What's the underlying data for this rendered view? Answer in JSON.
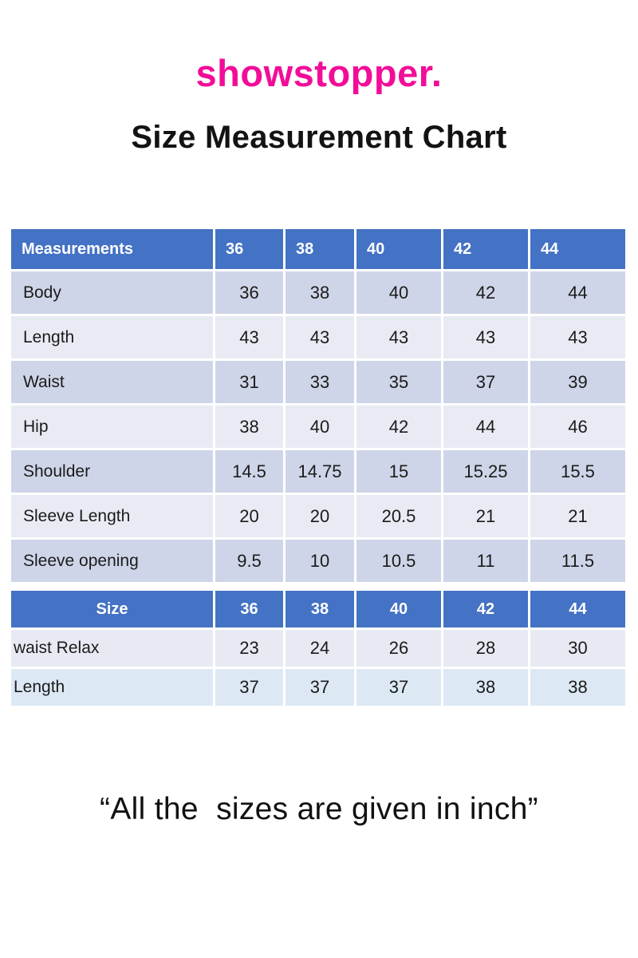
{
  "page": {
    "logo": "showstopper.",
    "title": "Size Measurement Chart",
    "footnote": "“All the  sizes are given in inch”"
  },
  "colors": {
    "brand_pink": "#F20D99",
    "header_blue": "#4472C4",
    "band_dark": "#CFD5E8",
    "band_light": "#E9EBF4",
    "size_table_row1": "#E8EAF3",
    "size_table_row2": "#DCE9F5"
  },
  "tables": [
    {
      "name": "measurements-table",
      "header": [
        "Measurements",
        "36",
        "38",
        "40",
        "42",
        "44"
      ],
      "rows": [
        {
          "label": "Body",
          "values": [
            "36",
            "38",
            "40",
            "42",
            "44"
          ]
        },
        {
          "label": "Length",
          "values": [
            "43",
            "43",
            "43",
            "43",
            "43"
          ]
        },
        {
          "label": "Waist",
          "values": [
            "31",
            "33",
            "35",
            "37",
            "39"
          ]
        },
        {
          "label": "Hip",
          "values": [
            "38",
            "40",
            "42",
            "44",
            "46"
          ]
        },
        {
          "label": "Shoulder",
          "values": [
            "14.5",
            "14.75",
            "15",
            "15.25",
            "15.5"
          ]
        },
        {
          "label": "Sleeve Length",
          "values": [
            "20",
            "20",
            "20.5",
            "21",
            "21"
          ]
        },
        {
          "label": "Sleeve opening",
          "values": [
            "9.5",
            "10",
            "10.5",
            "11",
            "11.5"
          ]
        }
      ]
    },
    {
      "name": "size-table",
      "header": [
        "Size",
        "36",
        "38",
        "40",
        "42",
        "44"
      ],
      "rows": [
        {
          "label": "waist Relax",
          "values": [
            "23",
            "24",
            "26",
            "28",
            "30"
          ]
        },
        {
          "label": "Length",
          "values": [
            "37",
            "37",
            "37",
            "38",
            "38"
          ]
        }
      ]
    }
  ]
}
